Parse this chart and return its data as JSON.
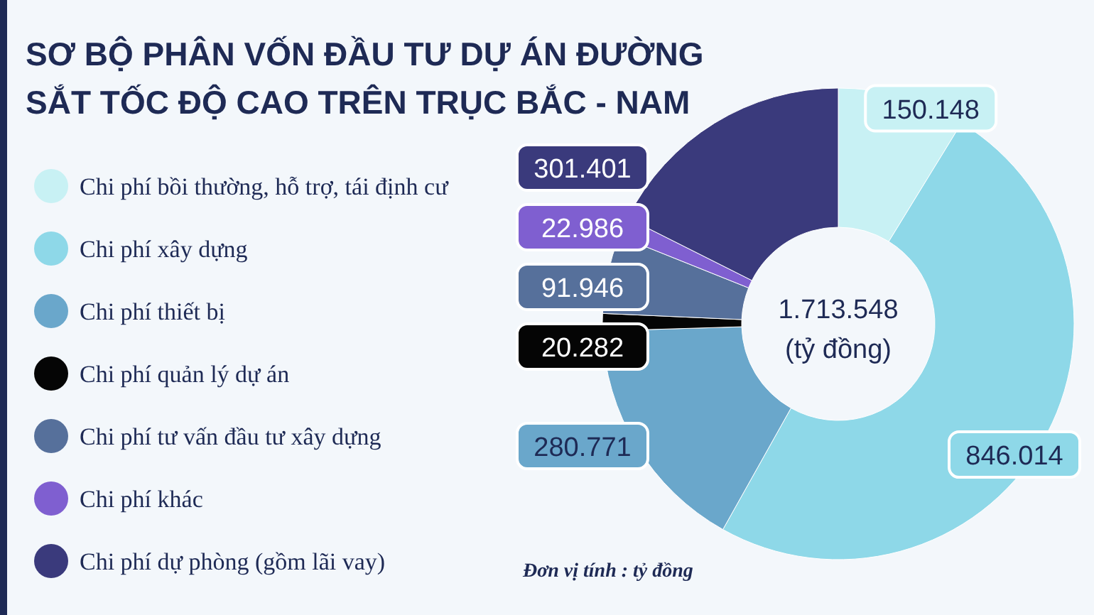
{
  "chart_data": {
    "type": "donut",
    "title": "SƠ BỘ PHÂN VỐN ĐẦU TƯ DỰ ÁN ĐƯỜNG SẮT TỐC ĐỘ CAO TRÊN TRỤC BẮC - NAM",
    "categories": [
      "Chi phí bồi thường, hỗ trợ, tái định cư",
      "Chi phí xây dựng",
      "Chi phí thiết bị",
      "Chi phí quản lý dự án",
      "Chi phí tư vấn đầu tư xây dựng",
      "Chi phí khác",
      "Chi phí dự phòng (gồm lãi vay)"
    ],
    "values": [
      150148,
      846014,
      280771,
      20282,
      91946,
      22986,
      301401
    ],
    "value_labels": [
      "150.148",
      "846.014",
      "280.771",
      "20.282",
      "91.946",
      "22.986",
      "301.401"
    ],
    "colors": [
      "#c8f1f4",
      "#8ed8e8",
      "#6aa7cb",
      "#050505",
      "#56709b",
      "#7f5fd0",
      "#3a3a7c"
    ],
    "legend": "left",
    "annotations": [
      "1.713.548",
      "(tỷ đồng)",
      "Đơn vị tính : tỷ đồng"
    ]
  }
}
